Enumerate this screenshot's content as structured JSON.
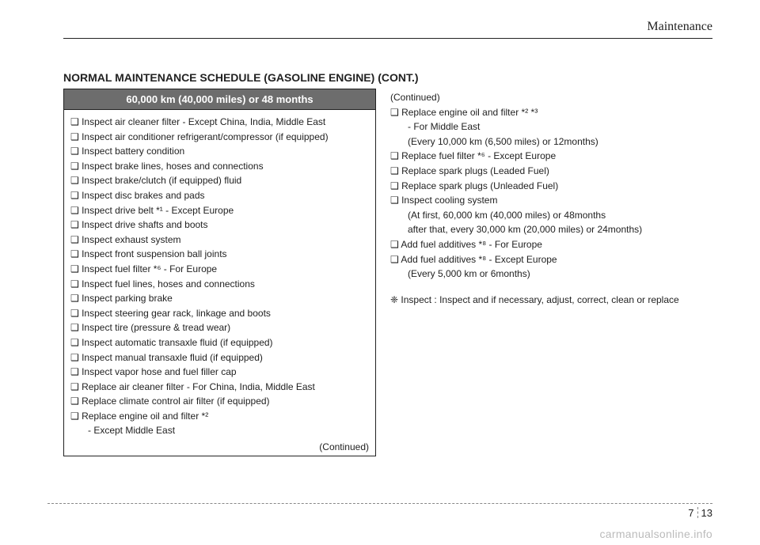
{
  "header": {
    "section": "Maintenance"
  },
  "title": "NORMAL MAINTENANCE SCHEDULE (GASOLINE ENGINE) (CONT.)",
  "interval": "60,000 km (40,000 miles) or 48 months",
  "left_items": [
    "❑ Inspect air cleaner filter - Except China, India, Middle East",
    "❑ Inspect air conditioner refrigerant/compressor (if equipped)",
    "❑ Inspect battery condition",
    "❑ Inspect brake lines, hoses and connections",
    "❑ Inspect brake/clutch (if equipped) fluid",
    "❑ Inspect disc brakes and pads",
    "❑ Inspect drive belt *¹ - Except Europe",
    "❑ Inspect drive shafts and boots",
    "❑ Inspect exhaust system",
    "❑ Inspect front suspension ball joints",
    "❑ Inspect fuel filter *⁶ - For Europe",
    "❑ Inspect fuel lines, hoses and connections",
    "❑ Inspect parking brake",
    "❑ Inspect steering gear rack, linkage and boots",
    "❑ Inspect tire (pressure & tread wear)",
    "❑ Inspect automatic transaxle fluid (if equipped)",
    "❑ Inspect manual transaxle fluid (if equipped)",
    "❑ Inspect vapor hose and fuel filler cap",
    "❑ Replace air cleaner filter - For China, India, Middle East",
    "❑ Replace climate control air filter (if equipped)",
    "❑ Replace engine oil and filter *²"
  ],
  "left_sub": "- Except Middle East",
  "continued": "(Continued)",
  "right_continued": "(Continued)",
  "right_items": [
    {
      "t": "❑ Replace engine oil and filter *² *³",
      "sub": [
        "- For Middle East",
        "(Every 10,000 km (6,500 miles) or 12months)"
      ]
    },
    {
      "t": "❑ Replace fuel filter *⁶ - Except Europe"
    },
    {
      "t": "❑ Replace spark plugs (Leaded Fuel)"
    },
    {
      "t": "❑ Replace spark plugs (Unleaded Fuel)"
    },
    {
      "t": "❑ Inspect cooling system",
      "sub": [
        "(At first, 60,000 km (40,000 miles) or 48months",
        " after that, every 30,000 km (20,000 miles) or 24months)"
      ]
    },
    {
      "t": "❑ Add fuel additives *⁸ - For Europe"
    },
    {
      "t": "❑ Add fuel additives *⁸ - Except Europe",
      "sub": [
        "(Every 5,000 km or 6months)"
      ]
    }
  ],
  "note": {
    "label": "❈ Inspect : ",
    "text": "Inspect and if necessary, adjust, correct, clean or replace"
  },
  "footer": {
    "chapter": "7",
    "page": "13"
  },
  "watermark": "carmanualsonline.info",
  "colors": {
    "header_bg": "#6d6d6d",
    "text": "#222222",
    "watermark": "#bbbbbb",
    "rule": "#222222"
  }
}
